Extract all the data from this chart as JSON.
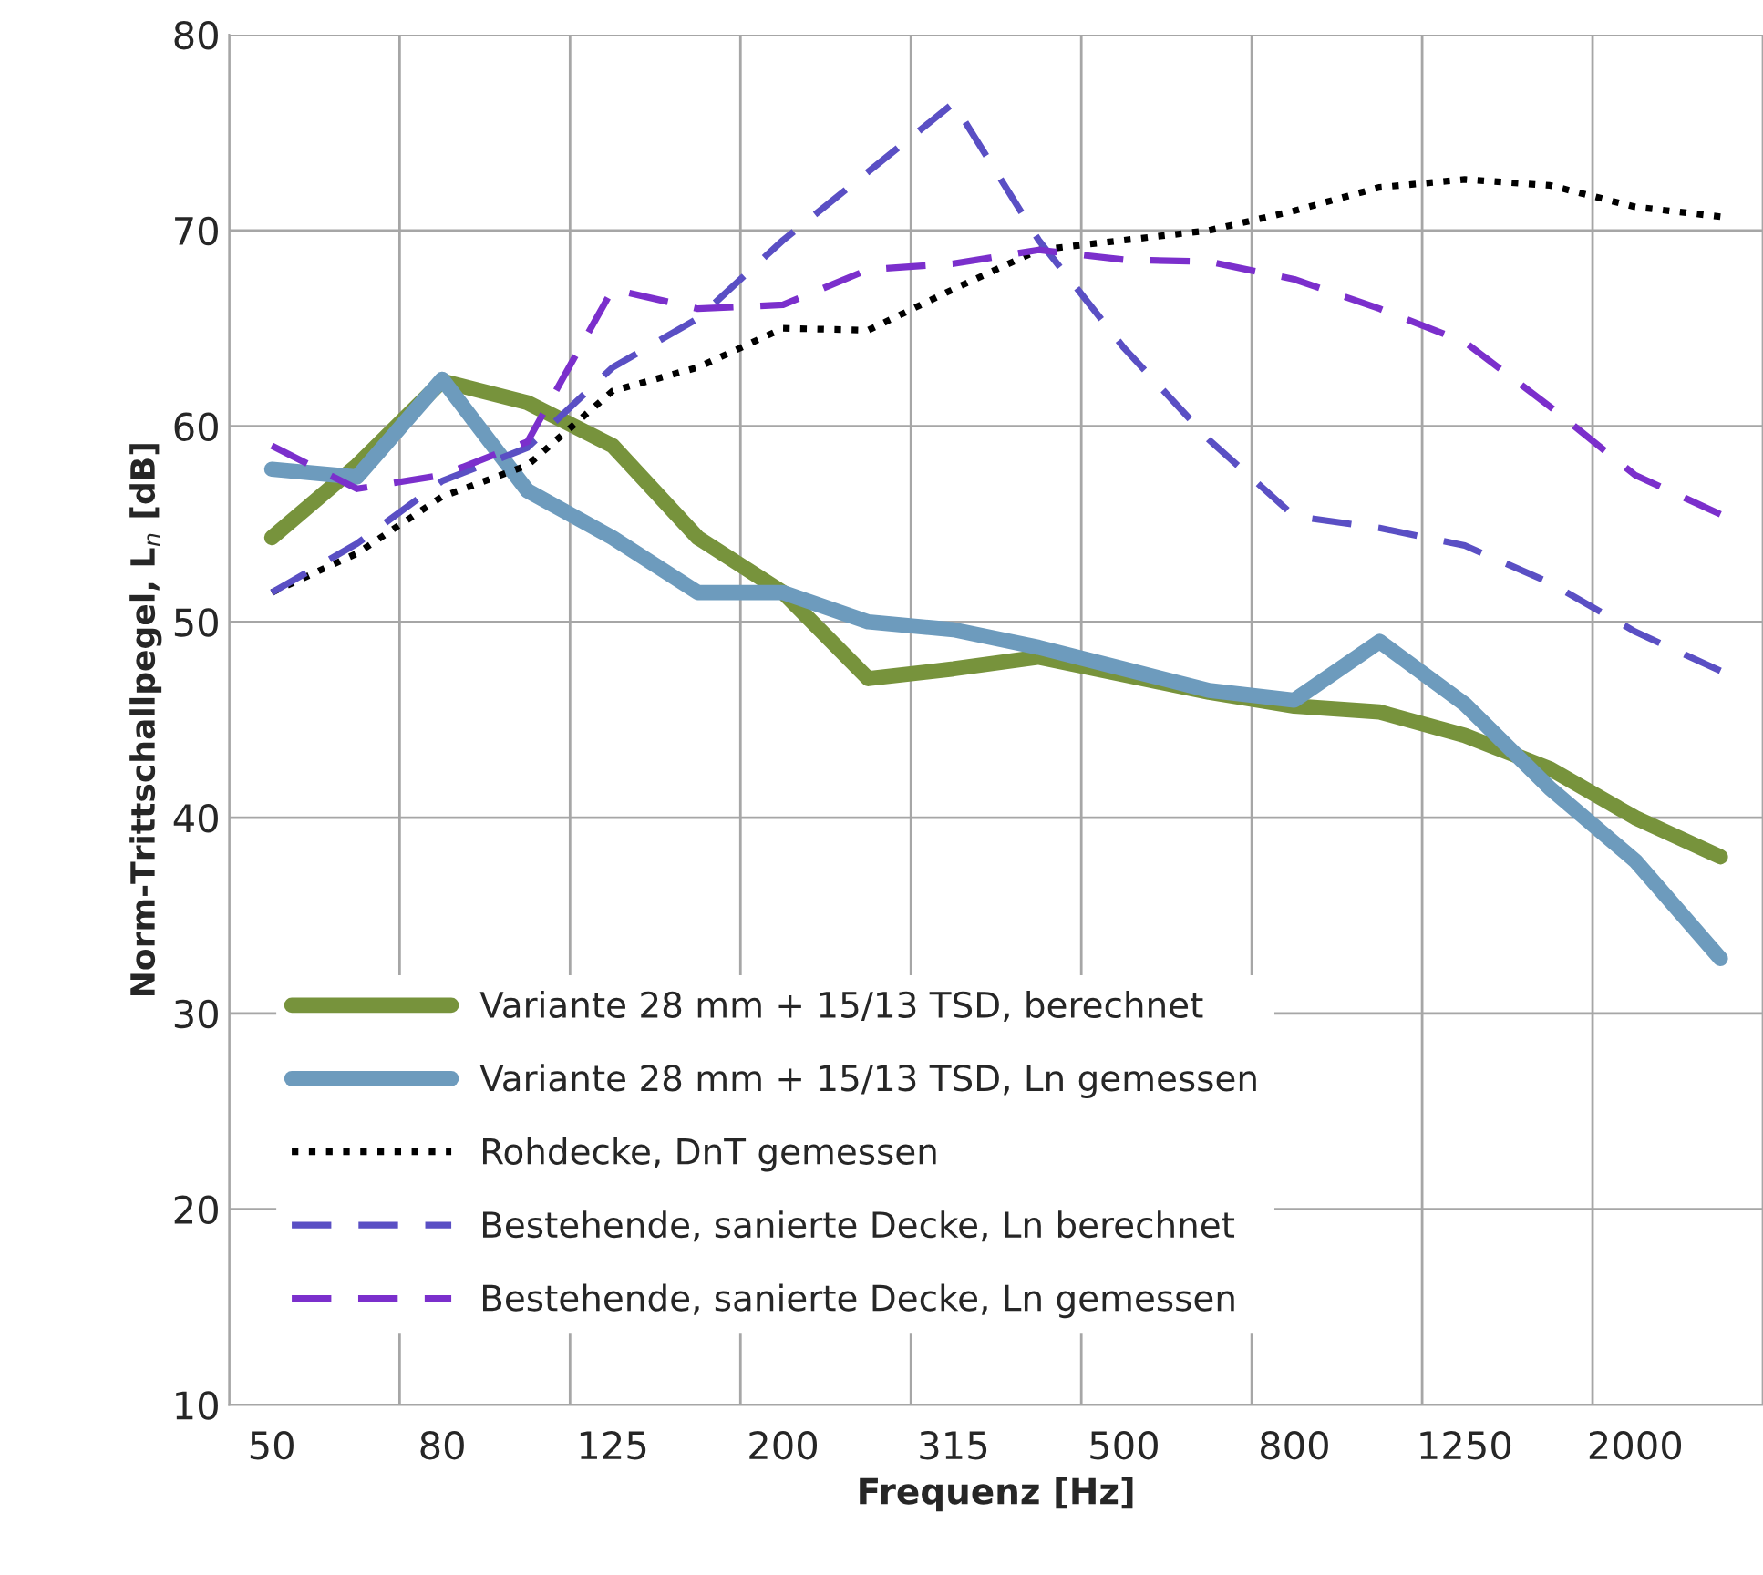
{
  "chart_data": {
    "type": "line",
    "xlabel": "Frequenz [Hz]",
    "ylabel": "Norm-Trittschallpegel, L$_{n}$ [dB]",
    "categories": [
      "50",
      null,
      "80",
      null,
      "125",
      null,
      "200",
      null,
      "315",
      null,
      "500",
      null,
      "800",
      null,
      "1250",
      null,
      "2000",
      null
    ],
    "ylim": [
      10,
      80
    ],
    "yticks": [
      10,
      20,
      30,
      40,
      50,
      60,
      70,
      80
    ],
    "grid": true,
    "legend": "bottom left",
    "series": [
      {
        "name": "Variante 28 mm + 15/13 TSD, berechnet",
        "color": "#77933c",
        "line_style": "solid",
        "values": [
          54.3,
          58,
          62.3,
          61.2,
          59,
          54.3,
          51.5,
          47.1,
          47.6,
          48.2,
          47.3,
          46.4,
          45.7,
          45.4,
          44.2,
          42.5,
          40,
          38
        ]
      },
      {
        "name": "Variante 28 mm + 15/13 TSD, Ln gemessen",
        "color": "#6d9bbd",
        "line_style": "solid",
        "values": [
          57.8,
          57.4,
          62.4,
          56.7,
          54.3,
          51.5,
          51.5,
          50,
          49.6,
          48.7,
          47.6,
          46.5,
          46,
          49,
          45.8,
          41.5,
          37.8,
          32.8
        ]
      },
      {
        "name": "Rohdecke, DnT gemessen",
        "color": "#000000",
        "line_style": "dotted",
        "values": [
          51.5,
          53.5,
          56.4,
          58,
          61.8,
          63,
          65,
          64.9,
          67,
          69,
          69.5,
          70,
          71,
          72.2,
          72.6,
          72.3,
          71.2,
          70.7
        ]
      },
      {
        "name": "Bestehende, sanierte Decke, Ln berechnet",
        "color": "#5a4fc4",
        "line_style": "dashed",
        "values": [
          51.5,
          54,
          57.2,
          58.9,
          63,
          65.5,
          69.5,
          73,
          76.5,
          69.5,
          64,
          59.3,
          55.4,
          54.8,
          53.9,
          52,
          49.5,
          47.5
        ]
      },
      {
        "name": "Bestehende, sanierte Decke, Ln gemessen",
        "color": "#7b2fcc",
        "line_style": "dashed",
        "values": [
          59,
          56.8,
          57.5,
          59.2,
          67,
          66,
          66.2,
          68,
          68.3,
          69,
          68.5,
          68.4,
          67.5,
          66,
          64.3,
          61,
          57.5,
          55.5
        ]
      }
    ]
  }
}
